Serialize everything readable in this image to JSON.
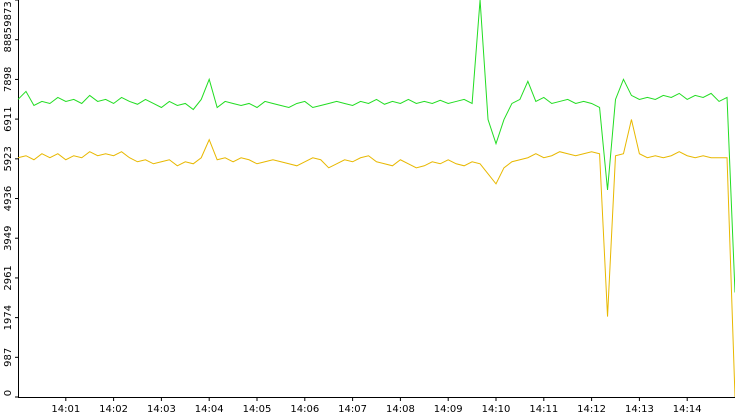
{
  "chart_data": {
    "type": "line",
    "categories": [
      null,
      null,
      null,
      null,
      null,
      null,
      "14:01",
      null,
      null,
      null,
      null,
      null,
      "14:02",
      null,
      null,
      null,
      null,
      null,
      "14:03",
      null,
      null,
      null,
      null,
      null,
      "14:04",
      null,
      null,
      null,
      null,
      null,
      "14:05",
      null,
      null,
      null,
      null,
      null,
      "14:06",
      null,
      null,
      null,
      null,
      null,
      "14:07",
      null,
      null,
      null,
      null,
      null,
      "14:08",
      null,
      null,
      null,
      null,
      null,
      "14:09",
      null,
      null,
      null,
      null,
      null,
      "14:10",
      null,
      null,
      null,
      null,
      null,
      "14:11",
      null,
      null,
      null,
      null,
      null,
      "14:12",
      null,
      null,
      null,
      null,
      null,
      "14:13",
      null,
      null,
      null,
      null,
      null,
      "14:14",
      null,
      null,
      null,
      null,
      null,
      null
    ],
    "series": [
      {
        "color": "#22dd22",
        "values": [
          7400,
          7600,
          7250,
          7350,
          7300,
          7450,
          7350,
          7400,
          7300,
          7500,
          7350,
          7400,
          7300,
          7450,
          7350,
          7280,
          7400,
          7300,
          7200,
          7350,
          7250,
          7300,
          7150,
          7400,
          7900,
          7200,
          7350,
          7300,
          7250,
          7300,
          7200,
          7350,
          7300,
          7250,
          7200,
          7300,
          7350,
          7200,
          7250,
          7300,
          7350,
          7300,
          7250,
          7350,
          7300,
          7400,
          7280,
          7350,
          7300,
          7400,
          7300,
          7350,
          7300,
          7380,
          7300,
          7350,
          7400,
          7300,
          9873,
          6900,
          6300,
          6900,
          7300,
          7400,
          7850,
          7350,
          7450,
          7300,
          7350,
          7400,
          7300,
          7350,
          7300,
          7200,
          5150,
          7400,
          7900,
          7500,
          7400,
          7450,
          7400,
          7500,
          7450,
          7550,
          7400,
          7500,
          7450,
          7550,
          7350,
          7450,
          2600
        ]
      },
      {
        "color": "#e8b800",
        "values": [
          5950,
          6000,
          5900,
          6050,
          5950,
          6050,
          5900,
          6000,
          5950,
          6100,
          6000,
          6050,
          6000,
          6100,
          5950,
          5850,
          5900,
          5800,
          5850,
          5900,
          5750,
          5850,
          5800,
          5950,
          6400,
          5900,
          5950,
          5850,
          5950,
          5900,
          5800,
          5850,
          5900,
          5850,
          5800,
          5750,
          5850,
          5950,
          5900,
          5700,
          5800,
          5900,
          5850,
          5950,
          6000,
          5850,
          5800,
          5750,
          5900,
          5800,
          5700,
          5750,
          5850,
          5800,
          5900,
          5800,
          5750,
          5850,
          5800,
          5550,
          5300,
          5700,
          5850,
          5900,
          5950,
          6050,
          5950,
          6000,
          6100,
          6050,
          6000,
          6050,
          6100,
          6050,
          2000,
          6000,
          6050,
          6900,
          6050,
          5950,
          6000,
          5950,
          6000,
          6100,
          6000,
          5950,
          6000,
          5950,
          5950,
          5950,
          0
        ]
      }
    ],
    "ylim": [
      0,
      9873
    ],
    "yticks": [
      0,
      987,
      1974,
      2961,
      3949,
      4936,
      5923,
      6911,
      7898,
      8885,
      9873
    ]
  }
}
